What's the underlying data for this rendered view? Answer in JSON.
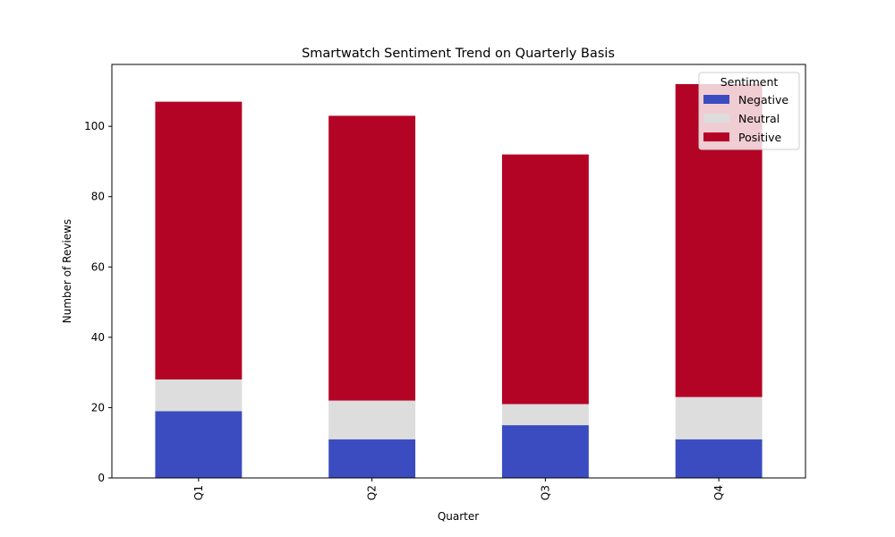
{
  "chart_data": {
    "type": "bar",
    "stacked": true,
    "title": "Smartwatch Sentiment Trend on Quarterly Basis",
    "xlabel": "Quarter",
    "ylabel": "Number of Reviews",
    "categories": [
      "Q1",
      "Q2",
      "Q3",
      "Q4"
    ],
    "series": [
      {
        "name": "Negative",
        "values": [
          19,
          11,
          15,
          11
        ],
        "color": "#3b4cc0"
      },
      {
        "name": "Neutral",
        "values": [
          9,
          11,
          6,
          12
        ],
        "color": "#dddddd"
      },
      {
        "name": "Positive",
        "values": [
          79,
          81,
          71,
          89
        ],
        "color": "#b40426"
      }
    ],
    "ylim": [
      0,
      117.6
    ],
    "yticks": [
      0,
      20,
      40,
      60,
      80,
      100
    ],
    "legend": {
      "title": "Sentiment",
      "placement": "upper right"
    },
    "grid": false
  }
}
